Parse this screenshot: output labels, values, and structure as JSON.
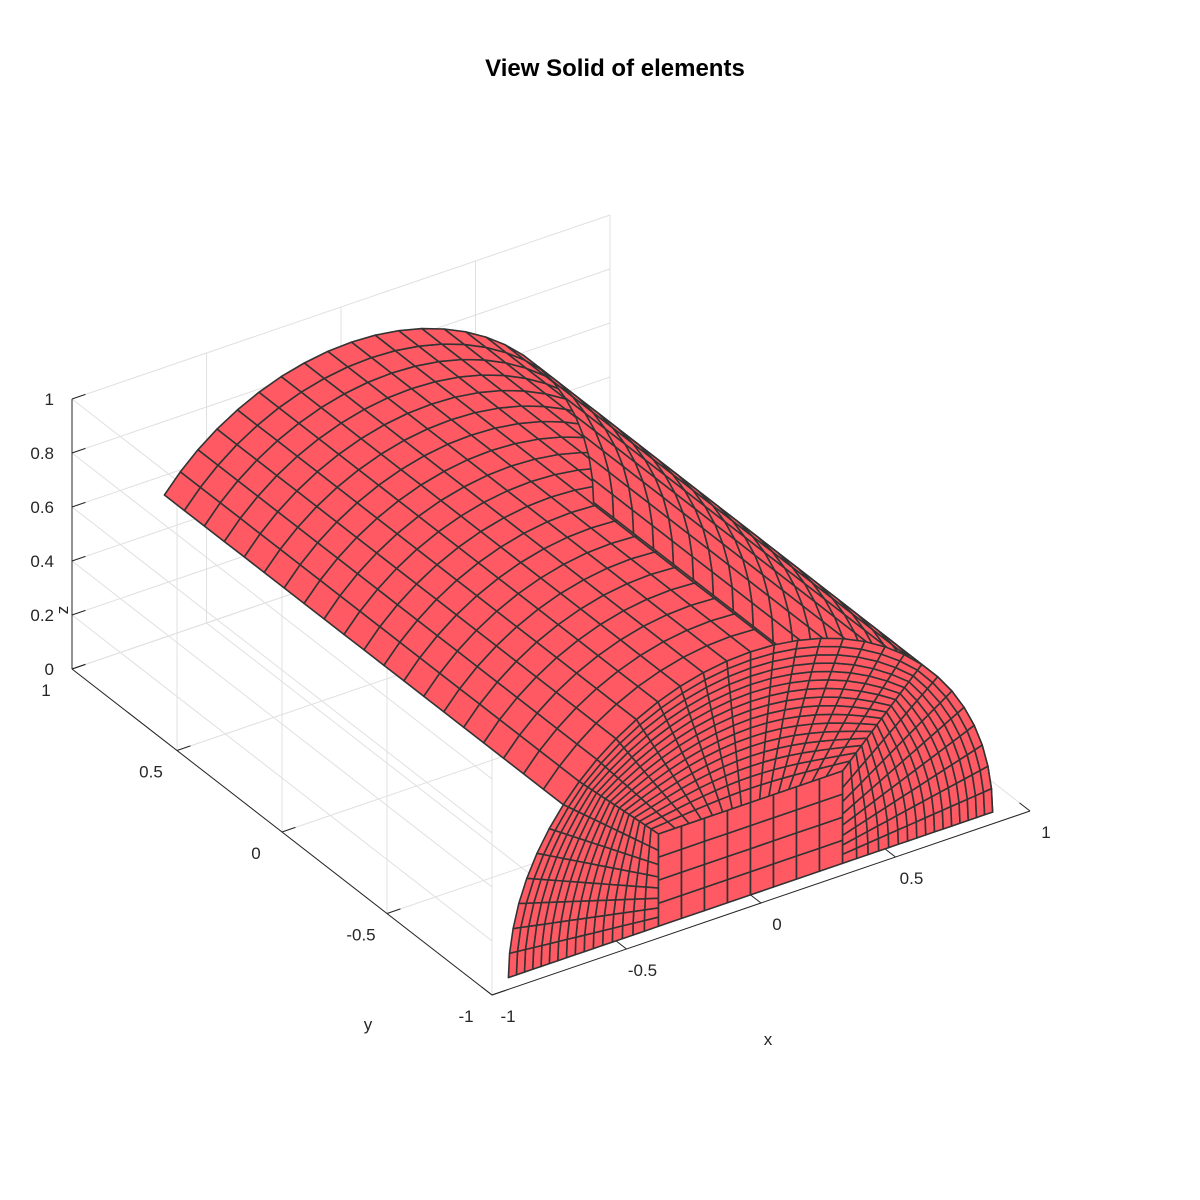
{
  "chart_data": {
    "type": "surface3d",
    "title": "View Solid of elements",
    "xlabel": "x",
    "ylabel": "y",
    "zlabel": "z",
    "xlim": [
      -1,
      1
    ],
    "ylim": [
      -1,
      1
    ],
    "zlim": [
      0,
      1
    ],
    "xticks": [
      -1,
      -0.5,
      0,
      0.5,
      1
    ],
    "yticks": [
      -1,
      -0.5,
      0,
      0.5,
      1
    ],
    "zticks": [
      0,
      0.2,
      0.4,
      0.6,
      0.8,
      1
    ],
    "xtick_labels": [
      "-1",
      "-0.5",
      "0",
      "0.5",
      "1"
    ],
    "ytick_labels": [
      "-1",
      "-0.5",
      "0",
      "0.5",
      "1"
    ],
    "ztick_labels": [
      "0",
      "0.2",
      "0.4",
      "0.6",
      "0.8",
      "1"
    ],
    "grid": true,
    "shape": "half-cylinder (radius 0.9, axis along y, z ≥ 0) with hexahedral element mesh",
    "solid": {
      "radius": 0.9,
      "y_range": [
        -0.95,
        0.95
      ]
    },
    "face_color": "#ff5a64",
    "edge_color": "#333333"
  }
}
